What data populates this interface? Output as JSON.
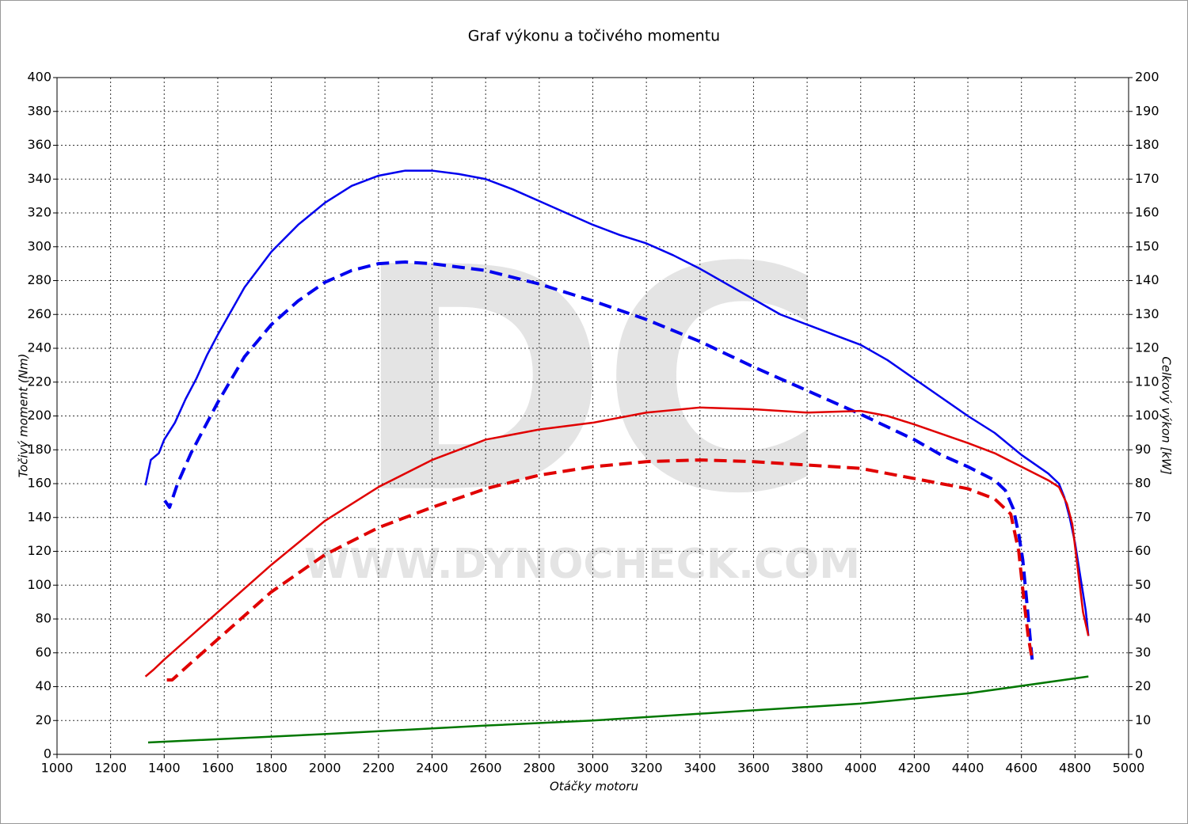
{
  "chart_data": {
    "type": "line",
    "title": "Graf výkonu a točivého momentu",
    "xlabel": "Otáčky motoru",
    "ylabel": "Točivý moment (Nm)",
    "y2label": "Celkový výkon [kW]",
    "watermark": [
      "DC",
      "WWW.DYNOCHECK.COM"
    ],
    "grid": true,
    "xlim": [
      1000,
      5000
    ],
    "xticks": [
      1000,
      1200,
      1400,
      1600,
      1800,
      2000,
      2200,
      2400,
      2600,
      2800,
      3000,
      3200,
      3400,
      3600,
      3800,
      4000,
      4200,
      4400,
      4600,
      4800,
      5000
    ],
    "ylim": [
      0,
      400
    ],
    "yticks": [
      0,
      20,
      40,
      60,
      80,
      100,
      120,
      140,
      160,
      180,
      200,
      220,
      240,
      260,
      280,
      300,
      320,
      340,
      360,
      380,
      400
    ],
    "y2lim": [
      0,
      200
    ],
    "y2ticks": [
      0,
      10,
      20,
      30,
      40,
      50,
      60,
      70,
      80,
      90,
      100,
      110,
      120,
      130,
      140,
      150,
      160,
      170,
      180,
      190,
      200
    ],
    "series": [
      {
        "color": "#0000ee",
        "dashed": false,
        "axis": "y",
        "x": [
          1330,
          1350,
          1380,
          1400,
          1440,
          1480,
          1520,
          1560,
          1600,
          1700,
          1800,
          1900,
          2000,
          2100,
          2200,
          2300,
          2400,
          2500,
          2600,
          2700,
          2800,
          2900,
          3000,
          3100,
          3200,
          3300,
          3400,
          3500,
          3600,
          3700,
          3800,
          3900,
          4000,
          4100,
          4200,
          4300,
          4400,
          4500,
          4600,
          4700,
          4740,
          4760,
          4780,
          4800,
          4820,
          4840,
          4850
        ],
        "values": [
          159,
          174,
          178,
          186,
          196,
          210,
          222,
          236,
          248,
          276,
          297,
          313,
          326,
          336,
          342,
          345,
          345,
          343,
          340,
          334,
          327,
          320,
          313,
          307,
          302,
          295,
          287,
          278,
          269,
          260,
          254,
          248,
          242,
          233,
          222,
          211,
          200,
          190,
          177,
          166,
          160,
          152,
          140,
          125,
          105,
          85,
          70
        ]
      },
      {
        "color": "#0000ee",
        "dashed": true,
        "axis": "y",
        "x": [
          1402,
          1420,
          1450,
          1500,
          1600,
          1700,
          1800,
          1900,
          2000,
          2100,
          2200,
          2300,
          2400,
          2600,
          2800,
          3000,
          3200,
          3400,
          3600,
          3800,
          4000,
          4200,
          4300,
          4400,
          4500,
          4540,
          4570,
          4590,
          4605,
          4620,
          4640
        ],
        "values": [
          150,
          146,
          160,
          178,
          208,
          235,
          254,
          268,
          279,
          286,
          290,
          291,
          290,
          286,
          278,
          268,
          257,
          244,
          229,
          215,
          201,
          186,
          177,
          170,
          162,
          156,
          145,
          130,
          115,
          90,
          56
        ]
      },
      {
        "color": "#e00000",
        "dashed": false,
        "axis": "y2",
        "x": [
          1330,
          1360,
          1400,
          1500,
          1600,
          1800,
          2000,
          2200,
          2400,
          2600,
          2800,
          3000,
          3200,
          3400,
          3600,
          3800,
          4000,
          4100,
          4200,
          4400,
          4500,
          4600,
          4700,
          4740,
          4770,
          4790,
          4810,
          4830,
          4850
        ],
        "values": [
          23,
          25,
          28,
          35,
          42,
          56,
          69,
          79,
          87,
          93,
          96,
          98,
          101,
          102.5,
          102,
          101,
          101.5,
          100,
          97.5,
          92,
          89,
          85,
          81,
          79,
          74,
          68,
          55,
          42,
          35
        ]
      },
      {
        "color": "#e00000",
        "dashed": true,
        "axis": "y2",
        "x": [
          1410,
          1430,
          1500,
          1600,
          1800,
          2000,
          2200,
          2400,
          2600,
          2800,
          3000,
          3200,
          3400,
          3600,
          3800,
          4000,
          4200,
          4400,
          4500,
          4560,
          4590,
          4610,
          4625,
          4640
        ],
        "values": [
          22,
          22,
          27,
          34,
          48,
          59,
          67,
          73,
          78.5,
          82.5,
          85,
          86.5,
          87,
          86.5,
          85.5,
          84.5,
          81.5,
          78.5,
          75.5,
          71,
          60,
          45,
          35,
          28
        ]
      },
      {
        "color": "#007700",
        "dashed": false,
        "axis": "y",
        "x": [
          1340,
          2000,
          2600,
          3000,
          3600,
          4000,
          4400,
          4850
        ],
        "values": [
          7,
          12,
          17,
          20,
          26,
          30,
          36,
          46
        ]
      }
    ]
  }
}
